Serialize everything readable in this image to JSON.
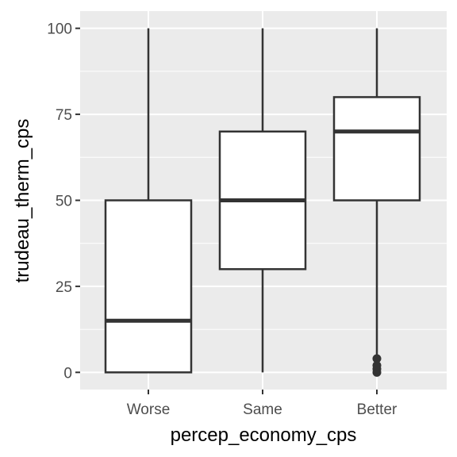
{
  "chart_data": {
    "type": "boxplot",
    "xlabel": "percep_economy_cps",
    "ylabel": "trudeau_therm_cps",
    "ylim": [
      -5,
      105
    ],
    "yticks": [
      0,
      25,
      50,
      75,
      100
    ],
    "ytick_labels": [
      "0",
      "25",
      "50",
      "75",
      "100"
    ],
    "categories": [
      "Worse",
      "Same",
      "Better"
    ],
    "boxes": [
      {
        "category": "Worse",
        "whisker_low": 0,
        "q1": 0,
        "median": 15,
        "q3": 50,
        "whisker_high": 100,
        "outliers": []
      },
      {
        "category": "Same",
        "whisker_low": 0,
        "q1": 30,
        "median": 50,
        "q3": 70,
        "whisker_high": 100,
        "outliers": []
      },
      {
        "category": "Better",
        "whisker_low": 5,
        "q1": 50,
        "median": 70,
        "q3": 80,
        "whisker_high": 100,
        "outliers": [
          0,
          1,
          2,
          4
        ]
      }
    ],
    "grid": true,
    "legend": "none",
    "colors": {
      "panel": "#ebebeb",
      "grid": "#ffffff",
      "box_fill": "#ffffff",
      "box_stroke": "#333333",
      "tick_text": "#4d4d4d"
    }
  }
}
